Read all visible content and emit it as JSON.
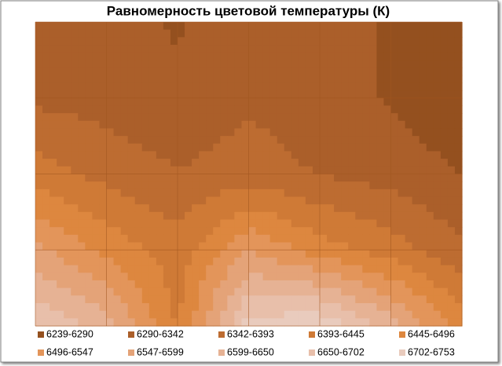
{
  "chart_data": {
    "type": "contour",
    "title": "Равномерность цветовой температуры (К)",
    "levels": [
      6239,
      6290,
      6342,
      6393,
      6445,
      6496,
      6547,
      6599,
      6650,
      6702,
      6753
    ],
    "bands": [
      {
        "name": "6239-6290",
        "color": "#94501f"
      },
      {
        "name": "6290-6342",
        "color": "#ab5f2a"
      },
      {
        "name": "6342-6393",
        "color": "#bd6c31"
      },
      {
        "name": "6393-6445",
        "color": "#cf7a36"
      },
      {
        "name": "6445-6496",
        "color": "#dd873f"
      },
      {
        "name": "6496-6547",
        "color": "#e3955a"
      },
      {
        "name": "6547-6599",
        "color": "#e4a378"
      },
      {
        "name": "6599-6650",
        "color": "#e6b294"
      },
      {
        "name": "6650-6702",
        "color": "#e8bfaa"
      },
      {
        "name": "6702-6753",
        "color": "#e9cbbd"
      }
    ],
    "values": [
      [
        6320,
        6310,
        6285,
        6320,
        6300,
        6288,
        6265
      ],
      [
        6330,
        6320,
        6300,
        6335,
        6310,
        6285,
        6245
      ],
      [
        6420,
        6375,
        6345,
        6365,
        6340,
        6320,
        6290
      ],
      [
        6560,
        6480,
        6415,
        6545,
        6470,
        6420,
        6350
      ],
      [
        6700,
        6625,
        6440,
        6725,
        6748,
        6625,
        6470
      ]
    ]
  }
}
